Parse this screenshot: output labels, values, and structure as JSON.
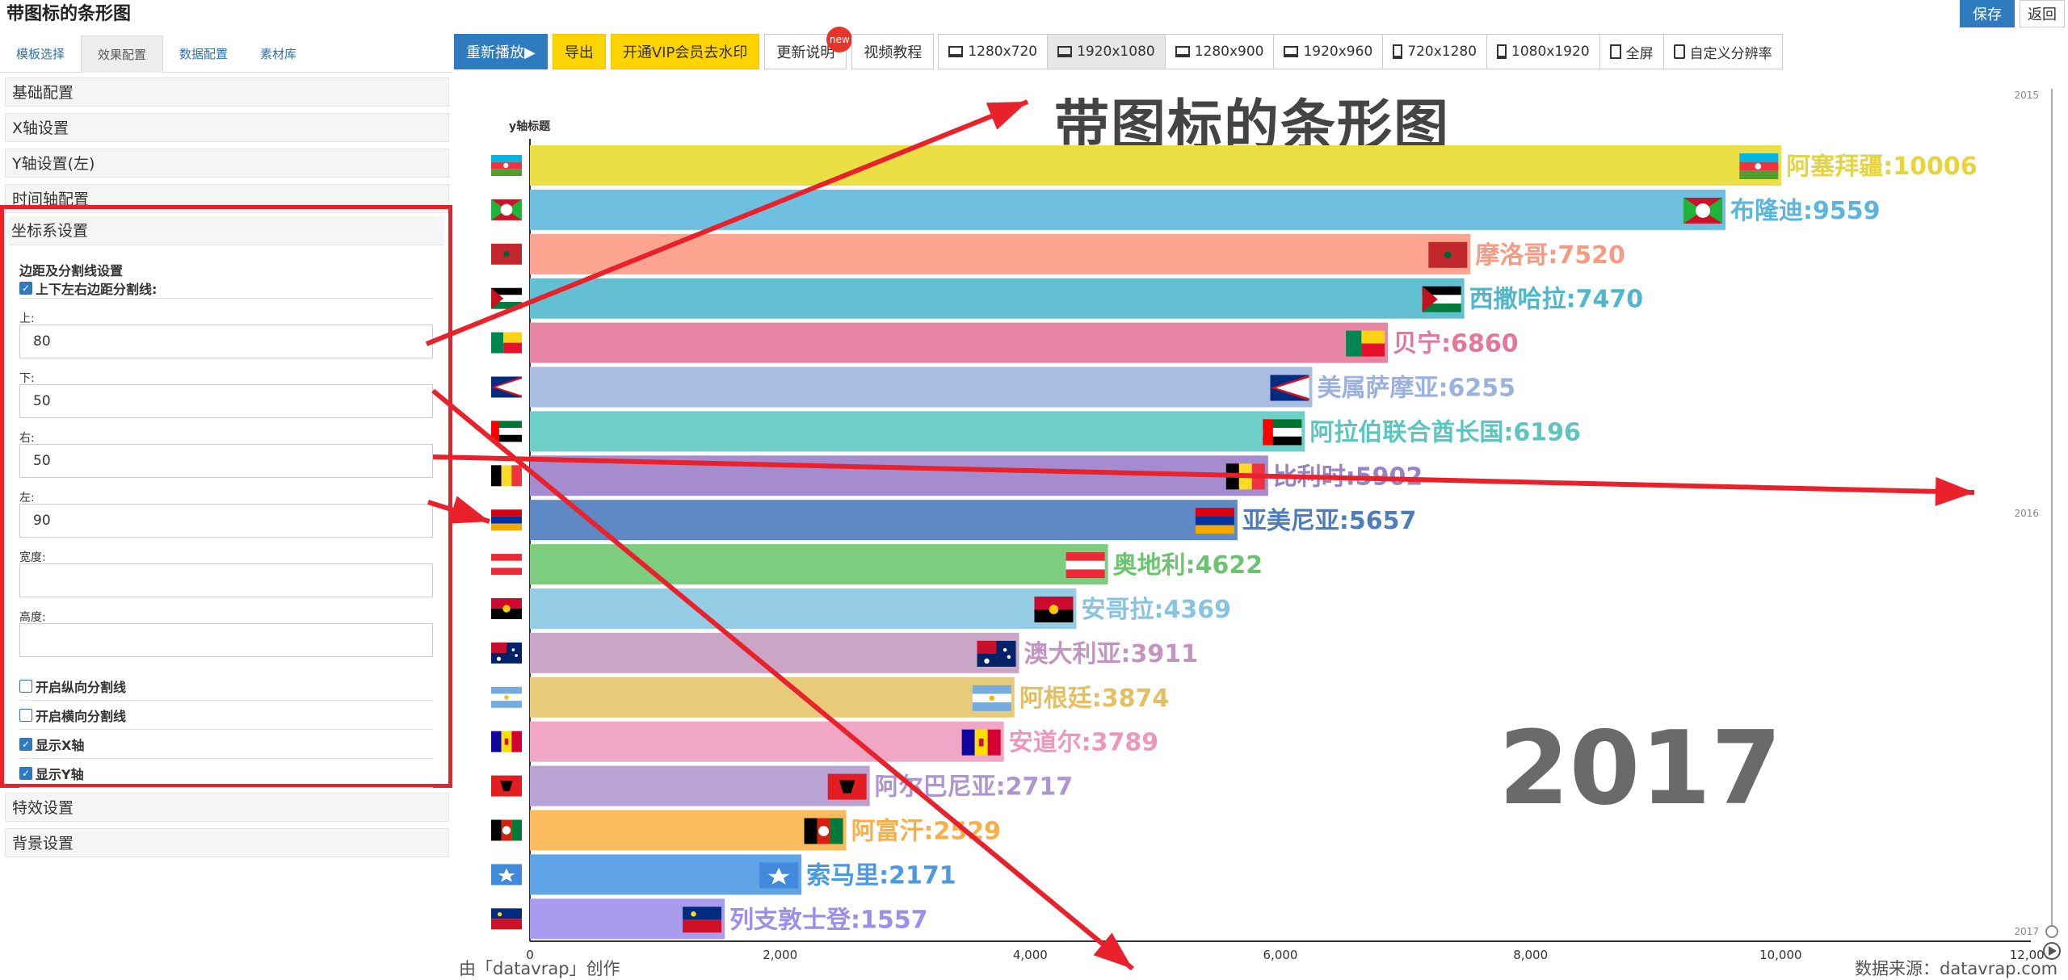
{
  "header": {
    "title": "带图标的条形图",
    "save_label": "保存",
    "back_label": "返回"
  },
  "left_tabs": [
    "模板选择",
    "效果配置",
    "数据配置",
    "素材库"
  ],
  "toolbar": {
    "replay": "重新播放▶",
    "export": "导出",
    "vip": "开通VIP会员去水印",
    "update_notes": "更新说明",
    "new_badge": "new",
    "video_tutorial": "视频教程",
    "resolutions": [
      "1280x720",
      "1920x1080",
      "1280x900",
      "1920x960",
      "720x1280",
      "1080x1920",
      "全屏",
      "自定义分辨率"
    ],
    "selected_resolution": "1920x1080"
  },
  "accordion": {
    "top_items": [
      "基础配置",
      "X轴设置",
      "Y轴设置(左)",
      "时间轴配置"
    ],
    "open_item": "坐标系设置",
    "bottom_items": [
      "特效设置",
      "背景设置"
    ]
  },
  "form": {
    "section_title": "边距及分割线设置",
    "margin_checkbox": "上下左右边距分割线:",
    "fields": [
      {
        "label": "上:",
        "value": "80"
      },
      {
        "label": "下:",
        "value": "50"
      },
      {
        "label": "右:",
        "value": "50"
      },
      {
        "label": "左:",
        "value": "90"
      },
      {
        "label": "宽度:",
        "value": ""
      },
      {
        "label": "高度:",
        "value": ""
      }
    ],
    "checkboxes": [
      {
        "label": "开启纵向分割线",
        "checked": false
      },
      {
        "label": "开启横向分割线",
        "checked": false
      },
      {
        "label": "显示X轴",
        "checked": true
      },
      {
        "label": "显示Y轴",
        "checked": true
      }
    ]
  },
  "chart_data": {
    "type": "bar",
    "title": "带图标的条形图",
    "ylabel": "y轴标题",
    "year": "2017",
    "xlim": [
      0,
      12000
    ],
    "x_ticks": [
      "0",
      "2,000",
      "4,000",
      "6,000",
      "8,000",
      "10,000",
      "12,000"
    ],
    "timeline_labels": [
      "2015",
      "2016",
      "2017"
    ],
    "categories": [
      "阿塞拜疆",
      "布隆迪",
      "摩洛哥",
      "西撒哈拉",
      "贝宁",
      "美属萨摩亚",
      "阿拉伯联合酋长国",
      "比利时",
      "亚美尼亚",
      "奥地利",
      "安哥拉",
      "澳大利亚",
      "阿根廷",
      "安道尔",
      "阿尔巴尼亚",
      "阿富汗",
      "索马里",
      "列支敦士登"
    ],
    "values": [
      10006,
      9559,
      7520,
      7470,
      6860,
      6255,
      6196,
      5902,
      5657,
      4622,
      4369,
      3911,
      3874,
      3789,
      2717,
      2529,
      2171,
      1557
    ],
    "colors": [
      "#eadf45",
      "#6fbfe0",
      "#fba590",
      "#62c0d2",
      "#e884a4",
      "#a9bde2",
      "#6ecfc8",
      "#a48ccf",
      "#5e89c4",
      "#7dcd80",
      "#95cde7",
      "#c9a5c6",
      "#e8cb7a",
      "#f0a6c5",
      "#b9a3d5",
      "#fcbb5e",
      "#5ea4e6",
      "#a99cf0"
    ],
    "label_colors": [
      "#e6d43a",
      "#5db5de",
      "#f59a83",
      "#4fb7cb",
      "#e4769a",
      "#9bb2de",
      "#5cc6be",
      "#9882c8",
      "#4d7dbd",
      "#6cc470",
      "#86c4e2",
      "#c195bf",
      "#e2bf63",
      "#ec98bc",
      "#ad95cd",
      "#f9ae49",
      "#4c98e1",
      "#9c8eec"
    ],
    "flags": [
      "az",
      "bi",
      "ma",
      "eh",
      "bj",
      "as",
      "ae",
      "be",
      "am",
      "at",
      "ao",
      "au",
      "ar",
      "ad",
      "al",
      "af",
      "so",
      "li"
    ]
  },
  "credits": {
    "left": "由「datavrap」创作",
    "right": "数据来源：datavrap.com"
  }
}
